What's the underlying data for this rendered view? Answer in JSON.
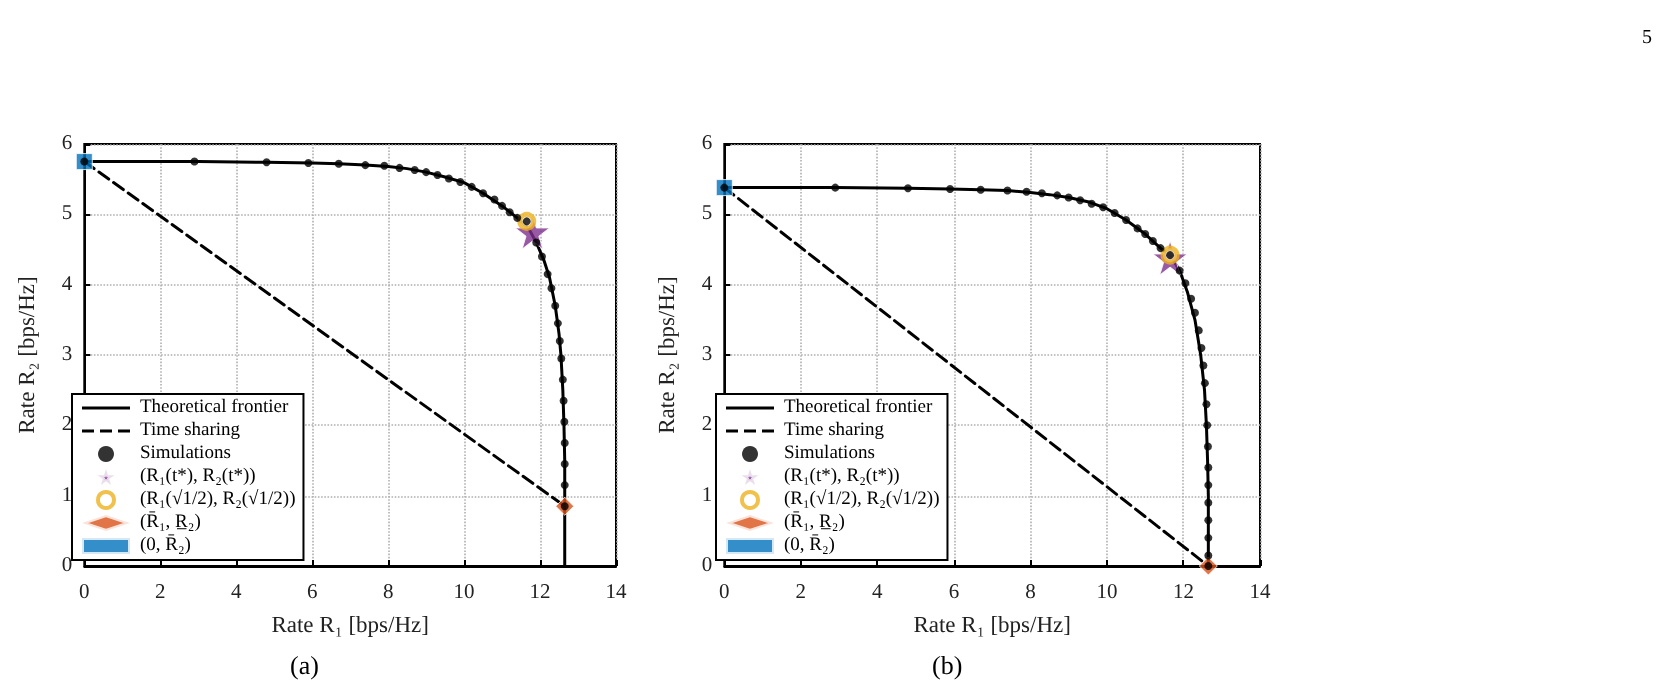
{
  "chart_data": [
    {
      "type": "line",
      "xlabel": "Rate R₁ [bps/Hz]",
      "ylabel": "Rate R₂ [bps/Hz]",
      "xlim": [
        0,
        14
      ],
      "xticks": [
        0,
        2,
        4,
        6,
        8,
        10,
        12,
        14
      ],
      "ylim": [
        0,
        6
      ],
      "yticks": [
        0,
        1,
        2,
        3,
        4,
        5,
        6
      ],
      "grid": true,
      "legend": "bottom left",
      "annotations": [
        "(a)"
      ],
      "series": [
        {
          "name": "Theoretical frontier",
          "color": "#000000",
          "line_style": "solid",
          "marker": "none",
          "x": [
            0,
            3,
            4.8,
            6,
            6.7,
            7.4,
            8,
            8.5,
            9,
            9.5,
            10,
            10.5,
            11,
            11.4,
            11.7,
            11.9,
            12.1,
            12.25,
            12.4,
            12.5,
            12.55,
            12.6,
            12.63,
            12.65,
            12.65,
            12.65,
            12.65
          ],
          "values": [
            5.75,
            5.75,
            5.74,
            5.73,
            5.72,
            5.7,
            5.68,
            5.65,
            5.6,
            5.53,
            5.45,
            5.3,
            5.12,
            4.95,
            4.8,
            4.6,
            4.35,
            4.1,
            3.7,
            3.3,
            3.0,
            2.5,
            2.0,
            1.5,
            1.0,
            0.85,
            0
          ]
        },
        {
          "name": "Time sharing",
          "color": "#000000",
          "line_style": "dashed",
          "marker": "none",
          "x": [
            0,
            12.65
          ],
          "values": [
            5.75,
            0.85
          ]
        },
        {
          "name": "Simulations",
          "type": "scatter",
          "color": "#000000",
          "marker": "circle",
          "x": [
            0,
            2.9,
            4.8,
            5.9,
            6.7,
            7.4,
            7.9,
            8.3,
            8.7,
            9.0,
            9.3,
            9.6,
            9.9,
            10.2,
            10.5,
            10.8,
            11.0,
            11.2,
            11.4,
            11.65,
            11.9,
            12.05,
            12.2,
            12.3,
            12.4,
            12.47,
            12.52,
            12.56,
            12.6,
            12.62,
            12.64,
            12.65,
            12.65,
            12.65,
            12.65
          ],
          "values": [
            5.75,
            5.75,
            5.74,
            5.73,
            5.72,
            5.7,
            5.69,
            5.66,
            5.63,
            5.6,
            5.56,
            5.51,
            5.46,
            5.39,
            5.3,
            5.21,
            5.12,
            5.03,
            4.95,
            4.9,
            4.6,
            4.4,
            4.15,
            3.95,
            3.7,
            3.45,
            3.2,
            2.95,
            2.65,
            2.35,
            2.05,
            1.75,
            1.45,
            1.15,
            0.85
          ]
        },
        {
          "name": "(R₁(t*), R₂(t*))",
          "type": "scatter",
          "color": "#7e2f8e",
          "marker": "star",
          "x": [
            11.8
          ],
          "values": [
            4.75
          ]
        },
        {
          "name": "(R₁(√1/2), R₂(√1/2))",
          "type": "scatter",
          "color": "#edb120",
          "marker": "circle",
          "x": [
            11.65
          ],
          "values": [
            4.9
          ]
        },
        {
          "name": "(R̄₁, R̲₂)",
          "type": "scatter",
          "color": "#d95319",
          "marker": "diamond",
          "x": [
            12.65
          ],
          "values": [
            0.85
          ]
        },
        {
          "name": "(0, R̄₂)",
          "type": "scatter",
          "color": "#0072bd",
          "marker": "square",
          "x": [
            0
          ],
          "values": [
            5.75
          ]
        }
      ]
    },
    {
      "type": "line",
      "xlabel": "Rate R₁ [bps/Hz]",
      "ylabel": "Rate R₂ [bps/Hz]",
      "xlim": [
        0,
        14
      ],
      "xticks": [
        0,
        2,
        4,
        6,
        8,
        10,
        12,
        14
      ],
      "ylim": [
        0,
        6
      ],
      "yticks": [
        0,
        1,
        2,
        3,
        4,
        5,
        6
      ],
      "grid": true,
      "legend": "bottom left",
      "annotations": [
        "(b)",
        "5"
      ],
      "series": [
        {
          "name": "Theoretical frontier",
          "color": "#000000",
          "line_style": "solid",
          "marker": "none",
          "x": [
            0,
            2.9,
            4.8,
            5.9,
            6.7,
            7.4,
            8,
            8.5,
            9,
            9.5,
            10,
            10.5,
            11,
            11.4,
            11.65,
            11.9,
            12.1,
            12.3,
            12.45,
            12.55,
            12.6,
            12.63,
            12.65,
            12.65,
            12.65
          ],
          "values": [
            5.38,
            5.38,
            5.37,
            5.36,
            5.35,
            5.34,
            5.31,
            5.28,
            5.24,
            5.18,
            5.08,
            4.92,
            4.72,
            4.52,
            4.42,
            4.2,
            3.9,
            3.5,
            3.0,
            2.5,
            2.0,
            1.5,
            1.0,
            0.5,
            0
          ]
        },
        {
          "name": "Time sharing",
          "color": "#000000",
          "line_style": "dashed",
          "marker": "none",
          "x": [
            0,
            12.65
          ],
          "values": [
            5.38,
            0
          ]
        },
        {
          "name": "Simulations",
          "type": "scatter",
          "color": "#000000",
          "marker": "circle",
          "x": [
            0,
            2.9,
            4.8,
            5.9,
            6.7,
            7.4,
            7.9,
            8.3,
            8.7,
            9.0,
            9.3,
            9.6,
            9.9,
            10.2,
            10.5,
            10.8,
            11.0,
            11.2,
            11.4,
            11.65,
            11.9,
            12.05,
            12.2,
            12.3,
            12.4,
            12.47,
            12.52,
            12.56,
            12.6,
            12.62,
            12.64,
            12.65,
            12.65,
            12.65,
            12.65,
            12.65,
            12.65,
            12.65
          ],
          "values": [
            5.38,
            5.38,
            5.37,
            5.36,
            5.35,
            5.34,
            5.32,
            5.3,
            5.27,
            5.24,
            5.2,
            5.15,
            5.1,
            5.02,
            4.92,
            4.8,
            4.72,
            4.62,
            4.52,
            4.42,
            4.2,
            4.02,
            3.8,
            3.6,
            3.35,
            3.1,
            2.85,
            2.6,
            2.3,
            2.0,
            1.7,
            1.4,
            1.15,
            0.9,
            0.65,
            0.4,
            0.15,
            0
          ]
        },
        {
          "name": "(R₁(t*), R₂(t*))",
          "type": "scatter",
          "color": "#7e2f8e",
          "marker": "star",
          "x": [
            11.65
          ],
          "values": [
            4.38
          ]
        },
        {
          "name": "(R₁(√1/2), R₂(√1/2))",
          "type": "scatter",
          "color": "#edb120",
          "marker": "circle",
          "x": [
            11.65
          ],
          "values": [
            4.42
          ]
        },
        {
          "name": "(R̄₁, R̲₂)",
          "type": "scatter",
          "color": "#d95319",
          "marker": "diamond",
          "x": [
            12.65
          ],
          "values": [
            0
          ]
        },
        {
          "name": "(0, R̄₂)",
          "type": "scatter",
          "color": "#0072bd",
          "marker": "square",
          "x": [
            0
          ],
          "values": [
            5.38
          ]
        }
      ]
    }
  ]
}
